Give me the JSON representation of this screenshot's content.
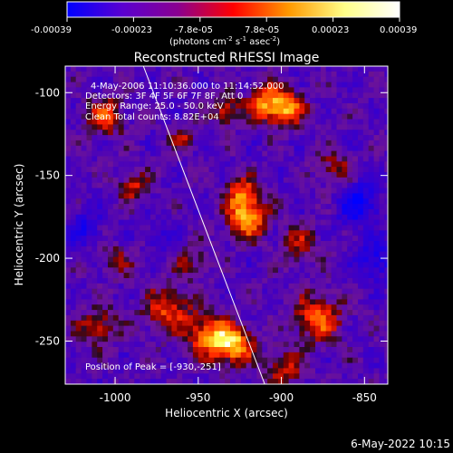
{
  "colorbar": {
    "tick_labels": [
      "-0.00039",
      "-0.00023",
      "-7.8e-05",
      "7.8e-05",
      "0.00023",
      "0.00039"
    ],
    "units": {
      "prefix": "(photons cm",
      "exp1": "-2",
      "mid1": " s",
      "exp2": "-1",
      "mid2": " asec",
      "exp3": "-2",
      "suffix": ")"
    },
    "colors": [
      "#0000ff",
      "#5a00d0",
      "#8a0090",
      "#ff0000",
      "#ff9900",
      "#ffff88",
      "#ffffff"
    ]
  },
  "chart_data": {
    "type": "heatmap",
    "title": "Reconstructed RHESSI Image",
    "xlabel": "Heliocentric X (arcsec)",
    "ylabel": "Heliocentric Y (arcsec)",
    "xlim": [
      -1030,
      -836
    ],
    "ylim": [
      -276,
      -84
    ],
    "xticks": [
      -1000,
      -950,
      -900,
      -850
    ],
    "yticks": [
      -100,
      -150,
      -200,
      -250
    ],
    "colorbar_range": [
      -0.00039,
      0.00039
    ],
    "limb_line": {
      "x": [
        -983,
        -910
      ],
      "y": [
        -84,
        -276
      ]
    },
    "hotspots": [
      {
        "x": -930,
        "y": -251,
        "v": 0.00039,
        "r": 8
      },
      {
        "x": -945,
        "y": -245,
        "v": 0.00034,
        "r": 9
      },
      {
        "x": -880,
        "y": -235,
        "v": 0.0003,
        "r": 10
      },
      {
        "x": -922,
        "y": -175,
        "v": 0.00037,
        "r": 8
      },
      {
        "x": -925,
        "y": -160,
        "v": 0.0003,
        "r": 7
      },
      {
        "x": -910,
        "y": -105,
        "v": 0.00035,
        "r": 8
      },
      {
        "x": -897,
        "y": -108,
        "v": 0.0003,
        "r": 7
      },
      {
        "x": -935,
        "y": -110,
        "v": 0.00025,
        "r": 6
      },
      {
        "x": -1008,
        "y": -113,
        "v": 0.00028,
        "r": 8
      },
      {
        "x": -990,
        "y": -155,
        "v": 0.00022,
        "r": 6
      },
      {
        "x": -970,
        "y": -230,
        "v": 0.00026,
        "r": 10
      },
      {
        "x": -1012,
        "y": -240,
        "v": 0.00022,
        "r": 8
      },
      {
        "x": -890,
        "y": -190,
        "v": 0.00018,
        "r": 8
      },
      {
        "x": -870,
        "y": -145,
        "v": 0.0002,
        "r": 7
      },
      {
        "x": -955,
        "y": -200,
        "v": 0.00015,
        "r": 7
      },
      {
        "x": -1000,
        "y": -200,
        "v": 0.00014,
        "r": 7
      },
      {
        "x": -900,
        "y": -265,
        "v": 0.0002,
        "r": 8
      },
      {
        "x": -960,
        "y": -125,
        "v": 0.00016,
        "r": 6
      }
    ],
    "coldspots": [
      {
        "x": -855,
        "y": -165,
        "v": -0.00025,
        "r": 9
      },
      {
        "x": -845,
        "y": -200,
        "v": -0.0002,
        "r": 8
      },
      {
        "x": -1020,
        "y": -180,
        "v": -0.00015,
        "r": 8
      },
      {
        "x": -975,
        "y": -185,
        "v": -0.00012,
        "r": 6
      }
    ],
    "annotations": {
      "time_range": "4-May-2006 11:10:36.000 to 11:14:52.000",
      "detectors": "Detectors: 3F 4F 5F 6F 7F 8F, Att 0",
      "energy": "Energy Range: 25.0 - 50.0 keV",
      "method": "Clean     Total counts: 8.82E+04",
      "peak": "Position of Peak = [-930,-251]"
    }
  },
  "footer": {
    "timestamp": "6-May-2022 10:15"
  }
}
